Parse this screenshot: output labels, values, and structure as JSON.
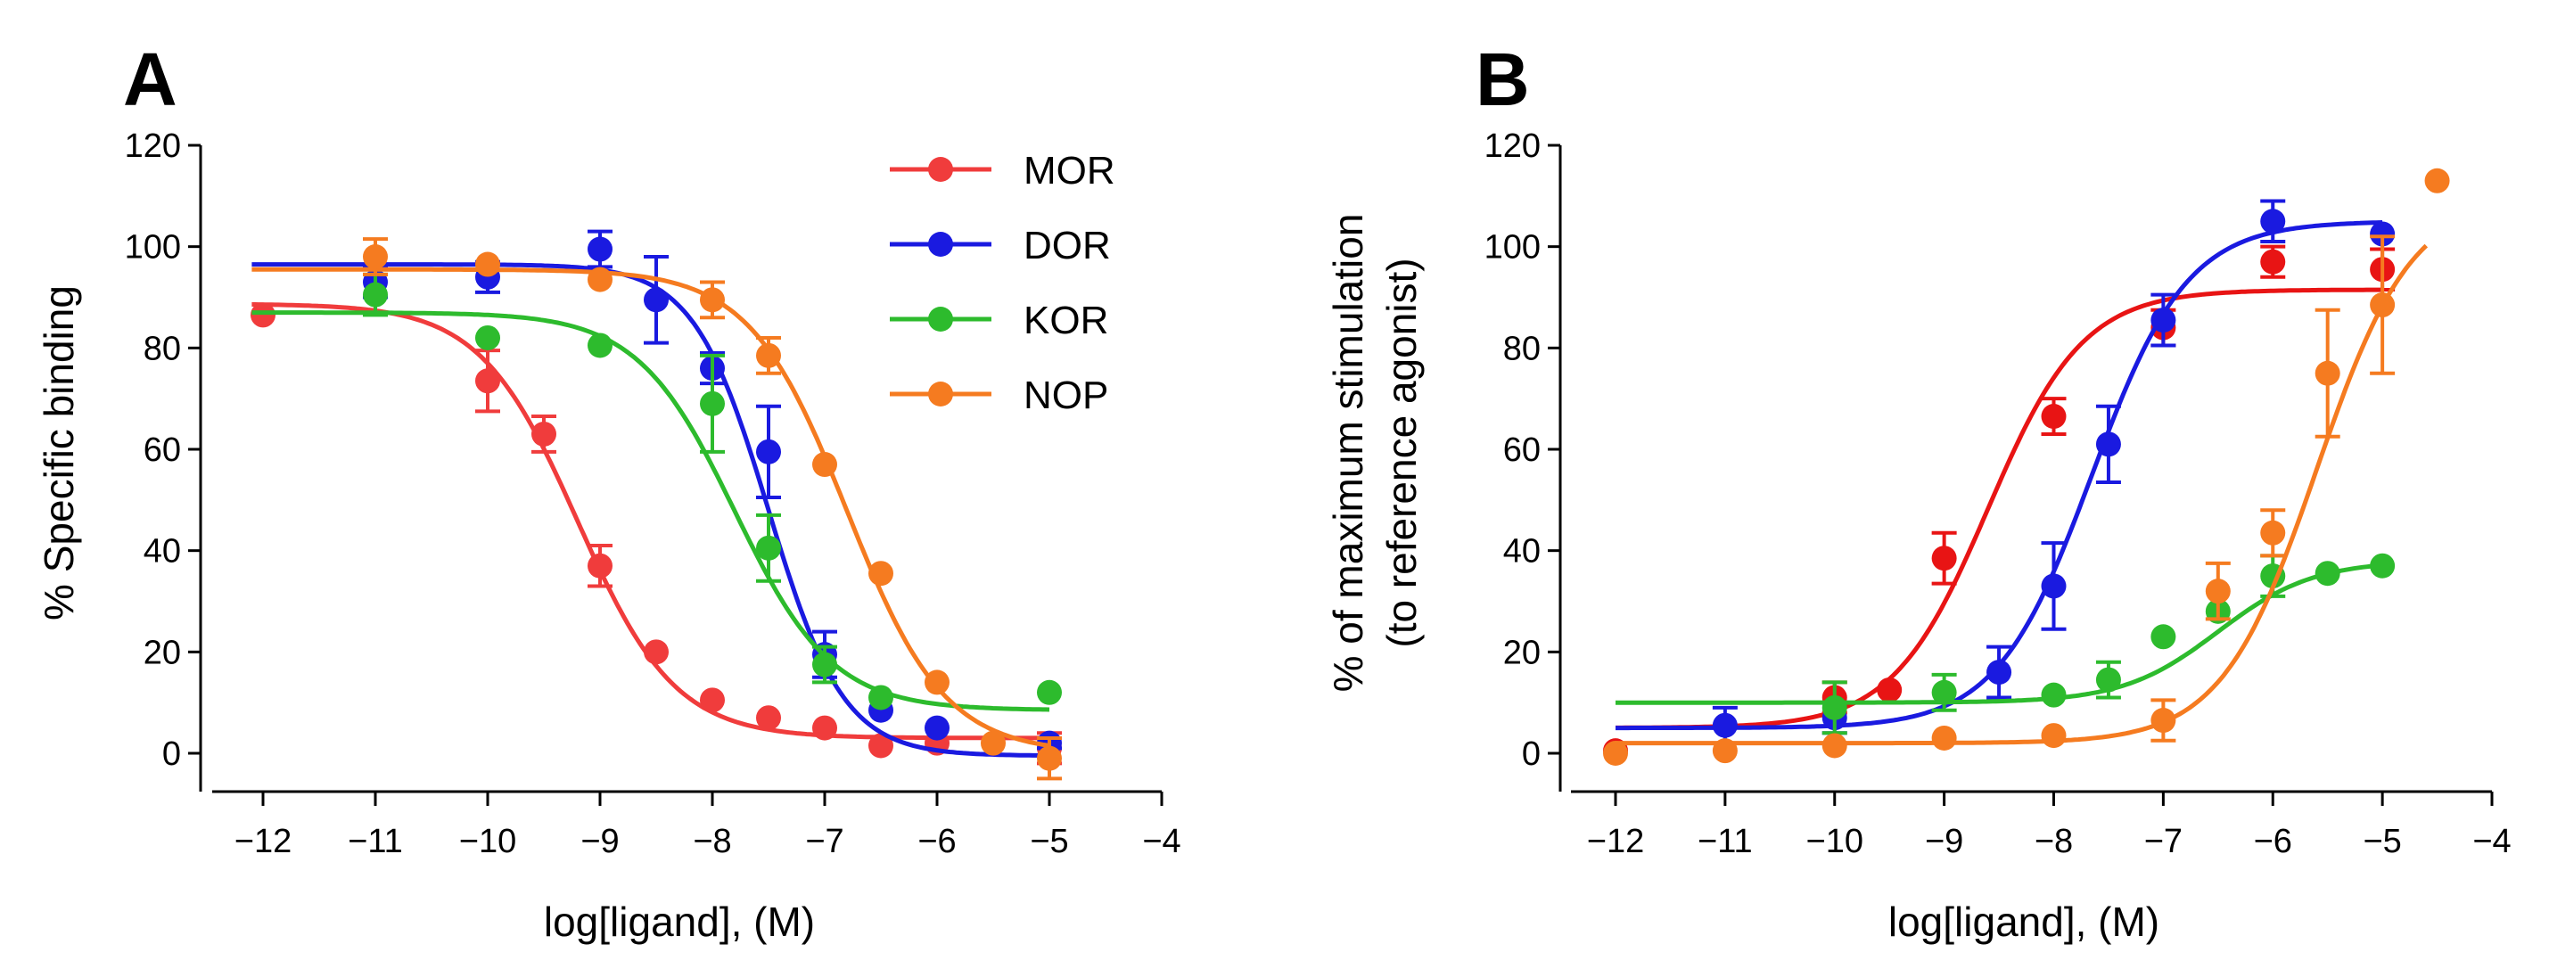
{
  "chart_data": [
    {
      "panel": "A",
      "type": "scatter",
      "xlabel": "log[ligand], (M)",
      "ylabel": "% Specific binding",
      "xlim": [
        -12.5,
        -4
      ],
      "ylim": [
        -7,
        120
      ],
      "xticks": [
        -12,
        -11,
        -10,
        -9,
        -8,
        -7,
        -6,
        -5,
        -4
      ],
      "yticks": [
        0,
        20,
        40,
        60,
        80,
        100,
        120
      ],
      "xtick_labels": [
        "−12",
        "−11",
        "−10",
        "−9",
        "−8",
        "−7",
        "−6",
        "−5",
        "−4"
      ],
      "ytick_labels": [
        "0",
        "20",
        "40",
        "60",
        "80",
        "100",
        "120"
      ],
      "legend_position": "top-right",
      "series": [
        {
          "name": "MOR",
          "color": "#f03c3c",
          "points": [
            {
              "x": -12,
              "y": 86.5,
              "err": 0
            },
            {
              "x": -10,
              "y": 73.5,
              "err": 6
            },
            {
              "x": -9.5,
              "y": 63,
              "err": 3.5
            },
            {
              "x": -9,
              "y": 37,
              "err": 4
            },
            {
              "x": -8.5,
              "y": 20,
              "err": 0
            },
            {
              "x": -8,
              "y": 10.5,
              "err": 0
            },
            {
              "x": -7.5,
              "y": 7,
              "err": 0
            },
            {
              "x": -7,
              "y": 5,
              "err": 0
            },
            {
              "x": -6.5,
              "y": 1.5,
              "err": 0
            },
            {
              "x": -6,
              "y": 2,
              "err": 0
            },
            {
              "x": -5,
              "y": 1,
              "err": 3
            }
          ],
          "fit": {
            "top": 88.7,
            "bottom": 3.0,
            "logec50": -9.2,
            "hill": 1.0
          }
        },
        {
          "name": "DOR",
          "color": "#1a1ae0",
          "points": [
            {
              "x": -11,
              "y": 93,
              "err": 3
            },
            {
              "x": -10,
              "y": 94,
              "err": 3
            },
            {
              "x": -9,
              "y": 99.5,
              "err": 3.5
            },
            {
              "x": -8.5,
              "y": 89.5,
              "err": 8.5
            },
            {
              "x": -8,
              "y": 76,
              "err": 3
            },
            {
              "x": -7.5,
              "y": 59.5,
              "err": 9
            },
            {
              "x": -7,
              "y": 19.5,
              "err": 4.5
            },
            {
              "x": -6.5,
              "y": 8.5,
              "err": 0
            },
            {
              "x": -6,
              "y": 5,
              "err": 0
            },
            {
              "x": -5,
              "y": 2,
              "err": 1
            }
          ],
          "fit": {
            "top": 96.5,
            "bottom": -0.5,
            "logec50": -7.5,
            "hill": 1.3
          }
        },
        {
          "name": "KOR",
          "color": "#2dbb2d",
          "points": [
            {
              "x": -11,
              "y": 90.5,
              "err": 4
            },
            {
              "x": -10,
              "y": 82,
              "err": 0
            },
            {
              "x": -9,
              "y": 80.5,
              "err": 0
            },
            {
              "x": -8,
              "y": 69,
              "err": 9.5
            },
            {
              "x": -7.5,
              "y": 40.5,
              "err": 6.5
            },
            {
              "x": -7,
              "y": 17.5,
              "err": 3.5
            },
            {
              "x": -6.5,
              "y": 11,
              "err": 0
            },
            {
              "x": -5,
              "y": 12,
              "err": 0
            }
          ],
          "fit": {
            "top": 87,
            "bottom": 8.5,
            "logec50": -7.8,
            "hill": 1.0
          }
        },
        {
          "name": "NOP",
          "color": "#f57b20",
          "points": [
            {
              "x": -11,
              "y": 98,
              "err": 3.5
            },
            {
              "x": -10,
              "y": 96.5,
              "err": 0
            },
            {
              "x": -9,
              "y": 93.5,
              "err": 0
            },
            {
              "x": -8,
              "y": 89.5,
              "err": 3.5
            },
            {
              "x": -7.5,
              "y": 78.5,
              "err": 3.5
            },
            {
              "x": -7,
              "y": 57,
              "err": 0
            },
            {
              "x": -6.5,
              "y": 35.5,
              "err": 0
            },
            {
              "x": -6,
              "y": 14,
              "err": 0
            },
            {
              "x": -5.5,
              "y": 2,
              "err": 0
            },
            {
              "x": -5,
              "y": -1,
              "err": 4
            }
          ],
          "fit": {
            "top": 95.5,
            "bottom": 0,
            "logec50": -6.8,
            "hill": 1.0
          }
        }
      ]
    },
    {
      "panel": "B",
      "type": "scatter",
      "xlabel": "log[ligand], (M)",
      "ylabel_line1": "% of maximum stimulation",
      "ylabel_line2": "(to reference agonist)",
      "xlim": [
        -12.5,
        -4
      ],
      "ylim": [
        -7,
        120
      ],
      "xticks": [
        -12,
        -11,
        -10,
        -9,
        -8,
        -7,
        -6,
        -5,
        -4
      ],
      "yticks": [
        0,
        20,
        40,
        60,
        80,
        100,
        120
      ],
      "xtick_labels": [
        "−12",
        "−11",
        "−10",
        "−9",
        "−8",
        "−7",
        "−6",
        "−5",
        "−4"
      ],
      "ytick_labels": [
        "0",
        "20",
        "40",
        "60",
        "80",
        "100",
        "120"
      ],
      "series": [
        {
          "name": "MOR",
          "color": "#e81414",
          "points": [
            {
              "x": -12,
              "y": 0.5,
              "err": 0
            },
            {
              "x": -10,
              "y": 11,
              "err": 3
            },
            {
              "x": -9.5,
              "y": 12.5,
              "err": 0
            },
            {
              "x": -9,
              "y": 38.5,
              "err": 5
            },
            {
              "x": -8,
              "y": 66.5,
              "err": 3.5
            },
            {
              "x": -7,
              "y": 84,
              "err": 3.5
            },
            {
              "x": -6,
              "y": 97,
              "err": 3
            },
            {
              "x": -5,
              "y": 95.5,
              "err": 4
            }
          ],
          "fit": {
            "top": 91.5,
            "bottom": 5,
            "logec50": -8.6,
            "hill": 1.0
          }
        },
        {
          "name": "DOR",
          "color": "#1a1ae0",
          "points": [
            {
              "x": -11,
              "y": 5.5,
              "err": 3.5
            },
            {
              "x": -10,
              "y": 7,
              "err": 3
            },
            {
              "x": -8.5,
              "y": 16,
              "err": 5
            },
            {
              "x": -8,
              "y": 33,
              "err": 8.5
            },
            {
              "x": -7.5,
              "y": 61,
              "err": 7.5
            },
            {
              "x": -7,
              "y": 85.5,
              "err": 5
            },
            {
              "x": -6,
              "y": 105,
              "err": 4
            },
            {
              "x": -5,
              "y": 102.5,
              "err": 0
            }
          ],
          "fit": {
            "top": 105,
            "bottom": 5,
            "logec50": -7.65,
            "hill": 1.0
          }
        },
        {
          "name": "KOR",
          "color": "#2dbb2d",
          "points": [
            {
              "x": -10,
              "y": 9,
              "err": 5
            },
            {
              "x": -9,
              "y": 12,
              "err": 3.5
            },
            {
              "x": -8,
              "y": 11.5,
              "err": 0
            },
            {
              "x": -7.5,
              "y": 14.5,
              "err": 3.5
            },
            {
              "x": -7,
              "y": 23,
              "err": 0
            },
            {
              "x": -6.5,
              "y": 28,
              "err": 0
            },
            {
              "x": -6,
              "y": 35,
              "err": 4
            },
            {
              "x": -5.5,
              "y": 35.5,
              "err": 0
            },
            {
              "x": -5,
              "y": 37,
              "err": 0
            }
          ],
          "fit": {
            "top": 38,
            "bottom": 10,
            "logec50": -6.5,
            "hill": 1.0
          }
        },
        {
          "name": "NOP",
          "color": "#f57b20",
          "points": [
            {
              "x": -12,
              "y": 0,
              "err": 0
            },
            {
              "x": -11,
              "y": 0.5,
              "err": 0
            },
            {
              "x": -10,
              "y": 1.5,
              "err": 0
            },
            {
              "x": -9,
              "y": 3,
              "err": 0
            },
            {
              "x": -8,
              "y": 3.5,
              "err": 0
            },
            {
              "x": -7,
              "y": 6.5,
              "err": 4
            },
            {
              "x": -6.5,
              "y": 32,
              "err": 5.5
            },
            {
              "x": -6,
              "y": 43.5,
              "err": 4.5
            },
            {
              "x": -5.5,
              "y": 75,
              "err": 12.5
            },
            {
              "x": -5,
              "y": 88.5,
              "err": 13.5
            },
            {
              "x": -4.5,
              "y": 113,
              "err": 0
            }
          ],
          "fit": {
            "top": 110,
            "bottom": 2,
            "logec50": -5.6,
            "hill": 1.0
          }
        }
      ]
    }
  ]
}
